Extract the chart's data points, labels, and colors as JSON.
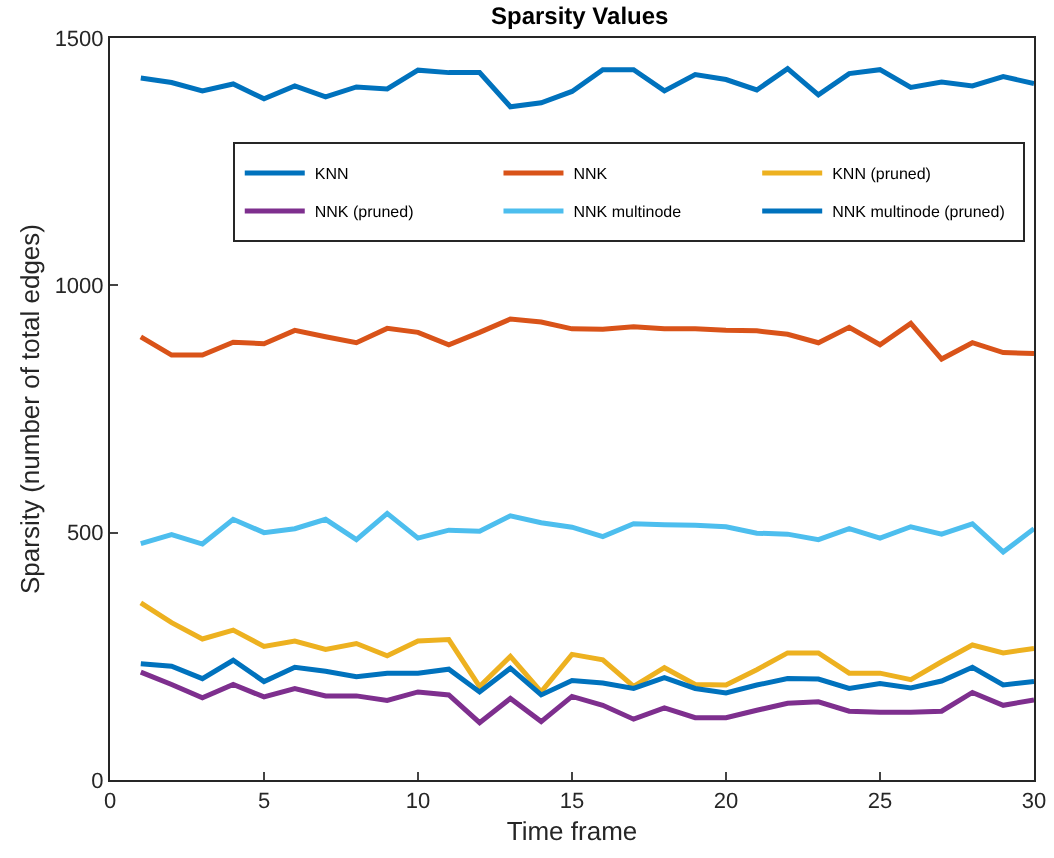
{
  "chart_data": {
    "type": "line",
    "title": "Sparsity Values",
    "xlabel": "Time frame",
    "ylabel": "Sparsity (number of total edges)",
    "x": [
      1,
      2,
      3,
      4,
      5,
      6,
      7,
      8,
      9,
      10,
      11,
      12,
      13,
      14,
      15,
      16,
      17,
      18,
      19,
      20,
      21,
      22,
      23,
      24,
      25,
      26,
      27,
      28,
      29,
      30
    ],
    "xlim": [
      0,
      30
    ],
    "xticks": [
      0,
      5,
      10,
      15,
      20,
      25,
      30
    ],
    "ylim": [
      0,
      1500
    ],
    "yticks": [
      0,
      500,
      1000,
      1500
    ],
    "grid": false,
    "legend": "top right",
    "marker": "none",
    "line_style": "solid",
    "series": [
      {
        "name": "KNN",
        "color": "#0072bd",
        "values": [
          1419,
          1410,
          1393,
          1407,
          1377,
          1403,
          1381,
          1401,
          1397,
          1435,
          1430,
          1430,
          1361,
          1369,
          1392,
          1436,
          1436,
          1393,
          1426,
          1416,
          1395,
          1438,
          1385,
          1428,
          1436,
          1400,
          1411,
          1403,
          1422,
          1408
        ]
      },
      {
        "name": "NNK",
        "color": "#d95319",
        "values": [
          896,
          859,
          859,
          885,
          882,
          909,
          896,
          884,
          913,
          905,
          880,
          905,
          932,
          926,
          912,
          911,
          916,
          912,
          912,
          909,
          908,
          901,
          884,
          915,
          880,
          923,
          851,
          884,
          864,
          862
        ]
      },
      {
        "name": "KNN (pruned)",
        "color": "#edb120",
        "values": [
          358,
          318,
          285,
          303,
          270,
          281,
          264,
          276,
          251,
          281,
          284,
          189,
          250,
          178,
          254,
          243,
          189,
          227,
          193,
          192,
          223,
          257,
          257,
          216,
          216,
          203,
          239,
          273,
          257,
          266
        ]
      },
      {
        "name": "NNK (pruned)",
        "color": "#7e2f8e",
        "values": [
          218,
          193,
          166,
          193,
          168,
          185,
          170,
          170,
          161,
          178,
          172,
          116,
          165,
          118,
          169,
          151,
          123,
          146,
          126,
          126,
          141,
          155,
          158,
          139,
          137,
          137,
          139,
          177,
          151,
          162
        ]
      },
      {
        "name": "NNK multinode",
        "color": "#4dbeee",
        "values": [
          478,
          496,
          477,
          527,
          500,
          508,
          527,
          486,
          539,
          489,
          505,
          503,
          534,
          520,
          511,
          492,
          518,
          516,
          515,
          512,
          499,
          497,
          486,
          508,
          489,
          512,
          497,
          518,
          461,
          508
        ]
      },
      {
        "name": "NNK multinode (pruned)",
        "color": "#0072bd",
        "values": [
          235,
          230,
          205,
          242,
          199,
          228,
          220,
          209,
          216,
          216,
          224,
          178,
          226,
          172,
          201,
          196,
          185,
          207,
          185,
          176,
          192,
          205,
          204,
          185,
          195,
          186,
          200,
          228,
          192,
          199
        ]
      }
    ]
  }
}
